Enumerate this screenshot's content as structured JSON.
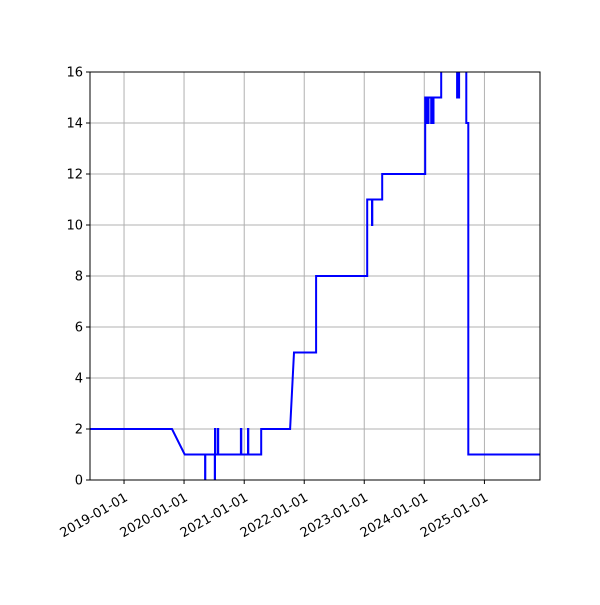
{
  "chart_data": {
    "type": "line",
    "title": "",
    "xlabel": "",
    "ylabel": "",
    "xlim": [
      "2018-06-08",
      "2025-12-05"
    ],
    "ylim": [
      0,
      16
    ],
    "grid": true,
    "color": "#0000ff",
    "x_ticks": [
      "2019-01-01",
      "2020-01-01",
      "2021-01-01",
      "2022-01-01",
      "2023-01-01",
      "2024-01-01",
      "2025-01-01"
    ],
    "y_ticks": [
      0,
      2,
      4,
      6,
      8,
      10,
      12,
      14,
      16
    ],
    "series": [
      {
        "points": [
          [
            "2018-06-08",
            2
          ],
          [
            "2019-10-20",
            2
          ],
          [
            "2020-01-05",
            1
          ],
          [
            "2020-05-08",
            1
          ],
          [
            "2020-05-08",
            0
          ],
          [
            "2020-05-09",
            0
          ],
          [
            "2020-05-09",
            1
          ],
          [
            "2020-07-06",
            1
          ],
          [
            "2020-07-06",
            0
          ],
          [
            "2020-07-07",
            0
          ],
          [
            "2020-07-07",
            2
          ],
          [
            "2020-07-09",
            2
          ],
          [
            "2020-07-09",
            1
          ],
          [
            "2020-07-25",
            1
          ],
          [
            "2020-07-25",
            2
          ],
          [
            "2020-07-27",
            2
          ],
          [
            "2020-07-27",
            1
          ],
          [
            "2020-12-12",
            1
          ],
          [
            "2020-12-12",
            2
          ],
          [
            "2020-12-14",
            2
          ],
          [
            "2020-12-14",
            1
          ],
          [
            "2021-01-24",
            1
          ],
          [
            "2021-01-24",
            2
          ],
          [
            "2021-01-26",
            2
          ],
          [
            "2021-01-26",
            1
          ],
          [
            "2021-04-14",
            1
          ],
          [
            "2021-04-14",
            2
          ],
          [
            "2021-10-07",
            2
          ],
          [
            "2021-10-31",
            5
          ],
          [
            "2022-03-14",
            5
          ],
          [
            "2022-03-14",
            8
          ],
          [
            "2023-01-19",
            8
          ],
          [
            "2023-01-19",
            11
          ],
          [
            "2023-02-17",
            11
          ],
          [
            "2023-02-17",
            10
          ],
          [
            "2023-02-19",
            10
          ],
          [
            "2023-02-19",
            11
          ],
          [
            "2023-04-20",
            11
          ],
          [
            "2023-04-20",
            12
          ],
          [
            "2024-01-07",
            12
          ],
          [
            "2024-01-07",
            15
          ],
          [
            "2024-01-13",
            15
          ],
          [
            "2024-01-13",
            14
          ],
          [
            "2024-01-15",
            14
          ],
          [
            "2024-01-15",
            15
          ],
          [
            "2024-01-25",
            15
          ],
          [
            "2024-01-25",
            14
          ],
          [
            "2024-01-27",
            14
          ],
          [
            "2024-01-27",
            15
          ],
          [
            "2024-02-12",
            15
          ],
          [
            "2024-02-12",
            14
          ],
          [
            "2024-02-14",
            14
          ],
          [
            "2024-02-14",
            15
          ],
          [
            "2024-02-24",
            15
          ],
          [
            "2024-02-24",
            14
          ],
          [
            "2024-02-26",
            14
          ],
          [
            "2024-02-26",
            15
          ],
          [
            "2024-04-13",
            15
          ],
          [
            "2024-04-13",
            17
          ],
          [
            "2024-07-19",
            17
          ],
          [
            "2024-07-19",
            15
          ],
          [
            "2024-07-31",
            15
          ],
          [
            "2024-07-31",
            17
          ],
          [
            "2024-09-13",
            17
          ],
          [
            "2024-09-13",
            14
          ],
          [
            "2024-09-25",
            14
          ],
          [
            "2024-09-25",
            1
          ],
          [
            "2025-12-05",
            1
          ]
        ]
      }
    ]
  }
}
